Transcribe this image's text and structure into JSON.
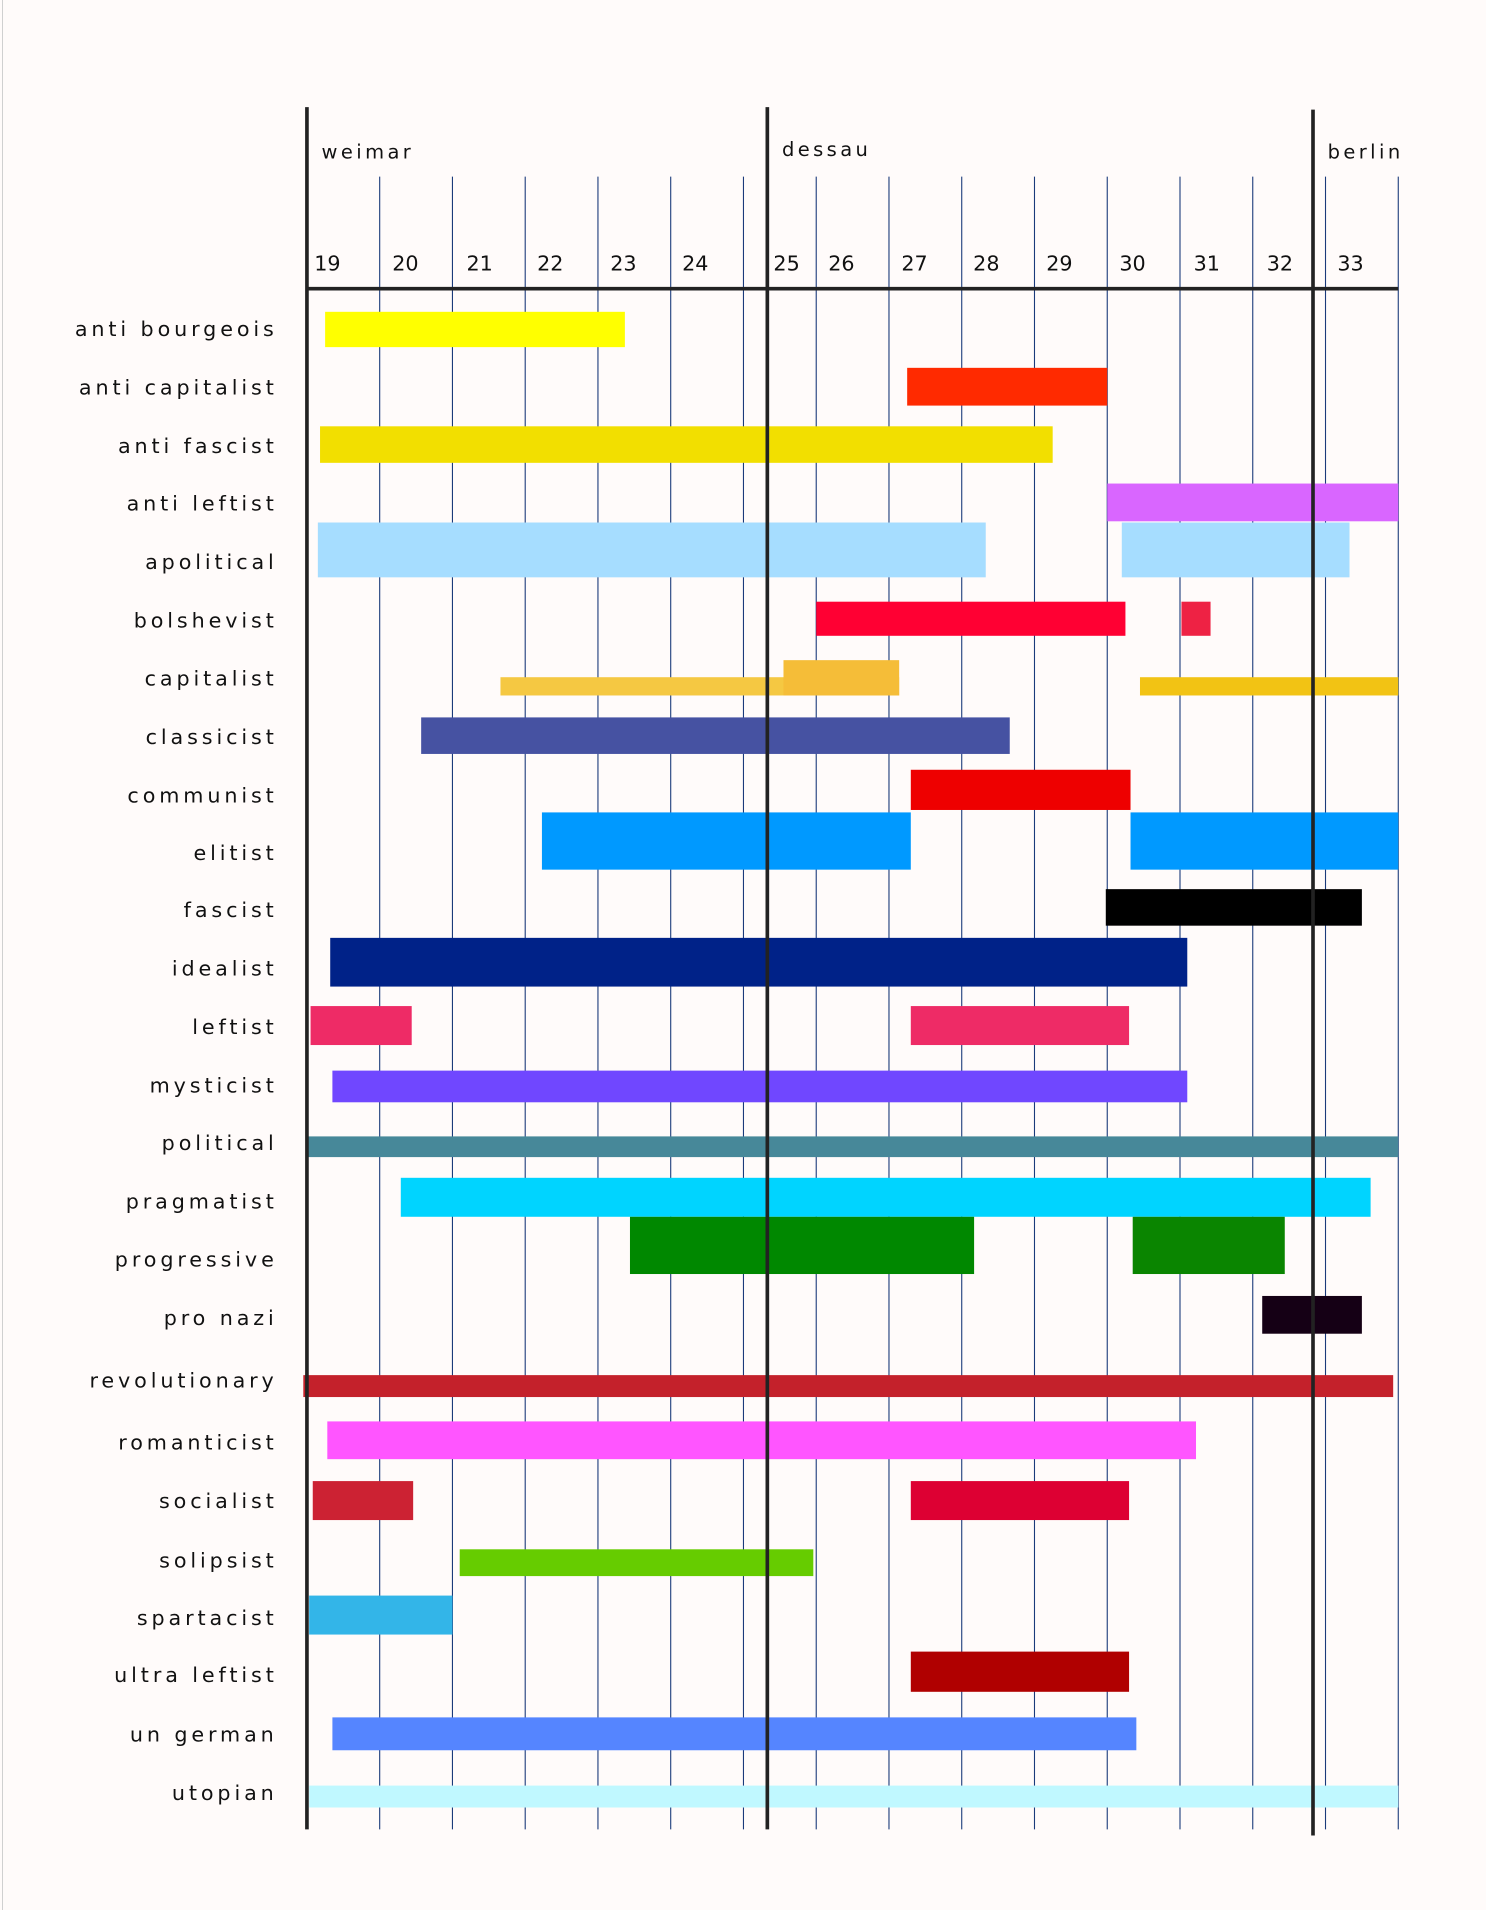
{
  "chart_data": {
    "type": "gantt",
    "title": "",
    "xlabel": "",
    "ylabel": "",
    "xlim": [
      19,
      34
    ],
    "x_ticks": [
      "19",
      "20",
      "21",
      "22",
      "23",
      "24",
      "25",
      "26",
      "27",
      "28",
      "29",
      "30",
      "31",
      "32",
      "33"
    ],
    "eras": [
      {
        "label": "weimar",
        "start": 19
      },
      {
        "label": "dessau",
        "start": 25.33
      },
      {
        "label": "berlin",
        "start": 32.83
      }
    ],
    "categories": [
      {
        "label": "anti bourgeois",
        "bars": [
          {
            "start": 19.25,
            "end": 23.37,
            "color": "#ffff00"
          }
        ]
      },
      {
        "label": "anti capitalist",
        "bars": [
          {
            "start": 27.25,
            "end": 30.0,
            "color": "#ff2a00"
          }
        ]
      },
      {
        "label": "anti fascist",
        "bars": [
          {
            "start": 19.18,
            "end": 29.25,
            "color": "#f2df00"
          }
        ]
      },
      {
        "label": "anti leftist",
        "bars": [
          {
            "start": 30.0,
            "end": 34.0,
            "color": "#d966ff"
          }
        ]
      },
      {
        "label": "apolitical",
        "bars": [
          {
            "start": 19.15,
            "end": 28.33,
            "color": "#a6ddff"
          },
          {
            "start": 30.2,
            "end": 33.33,
            "color": "#a6ddff"
          }
        ]
      },
      {
        "label": "bolshevist",
        "bars": [
          {
            "start": 26.0,
            "end": 30.25,
            "color": "#ff0033"
          },
          {
            "start": 31.02,
            "end": 31.42,
            "color": "#ee2244"
          }
        ]
      },
      {
        "label": "capitalist",
        "bars": [
          {
            "start": 21.66,
            "end": 27.14,
            "color": "#f5c842"
          },
          {
            "start": 25.55,
            "end": 27.14,
            "color": "#f5bd38"
          },
          {
            "start": 30.45,
            "end": 34.0,
            "color": "#f2c314"
          }
        ]
      },
      {
        "label": "classicist",
        "bars": [
          {
            "start": 20.57,
            "end": 28.66,
            "color": "#4652a2"
          }
        ]
      },
      {
        "label": "communist",
        "bars": [
          {
            "start": 27.3,
            "end": 30.32,
            "color": "#ee0000"
          }
        ]
      },
      {
        "label": "elitist",
        "bars": [
          {
            "start": 22.23,
            "end": 27.3,
            "color": "#0099ff"
          },
          {
            "start": 30.32,
            "end": 34.0,
            "color": "#0099ff"
          }
        ]
      },
      {
        "label": "fascist",
        "bars": [
          {
            "start": 29.98,
            "end": 33.5,
            "color": "#000000"
          }
        ]
      },
      {
        "label": "idealist",
        "bars": [
          {
            "start": 19.32,
            "end": 31.1,
            "color": "#002288"
          }
        ]
      },
      {
        "label": "leftist",
        "bars": [
          {
            "start": 19.05,
            "end": 20.44,
            "color": "#ee2b66"
          },
          {
            "start": 27.3,
            "end": 30.3,
            "color": "#ee2b66"
          }
        ]
      },
      {
        "label": "mysticist",
        "bars": [
          {
            "start": 19.35,
            "end": 31.1,
            "color": "#7047ff"
          }
        ]
      },
      {
        "label": "political",
        "bars": [
          {
            "start": 19.02,
            "end": 34.0,
            "color": "#478899"
          }
        ]
      },
      {
        "label": "pragmatist",
        "bars": [
          {
            "start": 20.29,
            "end": 33.62,
            "color": "#00d4ff"
          }
        ]
      },
      {
        "label": "progressive",
        "bars": [
          {
            "start": 23.44,
            "end": 28.17,
            "color": "#008800"
          },
          {
            "start": 30.35,
            "end": 32.44,
            "color": "#0a8500"
          }
        ]
      },
      {
        "label": "pro nazi",
        "bars": [
          {
            "start": 32.13,
            "end": 33.5,
            "color": "#150015"
          }
        ]
      },
      {
        "label": "revolutionary",
        "bars": [
          {
            "start": 18.95,
            "end": 33.93,
            "color": "#c4212b"
          }
        ]
      },
      {
        "label": "romanticist",
        "bars": [
          {
            "start": 19.28,
            "end": 31.22,
            "color": "#ff55ff"
          }
        ]
      },
      {
        "label": "socialist",
        "bars": [
          {
            "start": 19.08,
            "end": 20.46,
            "color": "#cc2233"
          },
          {
            "start": 27.3,
            "end": 30.3,
            "color": "#dd0033"
          }
        ]
      },
      {
        "label": "solipsist",
        "bars": [
          {
            "start": 21.1,
            "end": 25.96,
            "color": "#66cc00"
          }
        ]
      },
      {
        "label": "spartacist",
        "bars": [
          {
            "start": 19.03,
            "end": 21.0,
            "color": "#33b5e8"
          }
        ]
      },
      {
        "label": "ultra leftist",
        "bars": [
          {
            "start": 27.3,
            "end": 30.3,
            "color": "#b00000"
          }
        ]
      },
      {
        "label": "un german",
        "bars": [
          {
            "start": 19.35,
            "end": 30.4,
            "color": "#5585ff"
          }
        ]
      },
      {
        "label": "utopian",
        "bars": [
          {
            "start": 19.03,
            "end": 34.0,
            "color": "#c0f8ff"
          }
        ]
      }
    ],
    "grid": true,
    "legend": "none"
  }
}
